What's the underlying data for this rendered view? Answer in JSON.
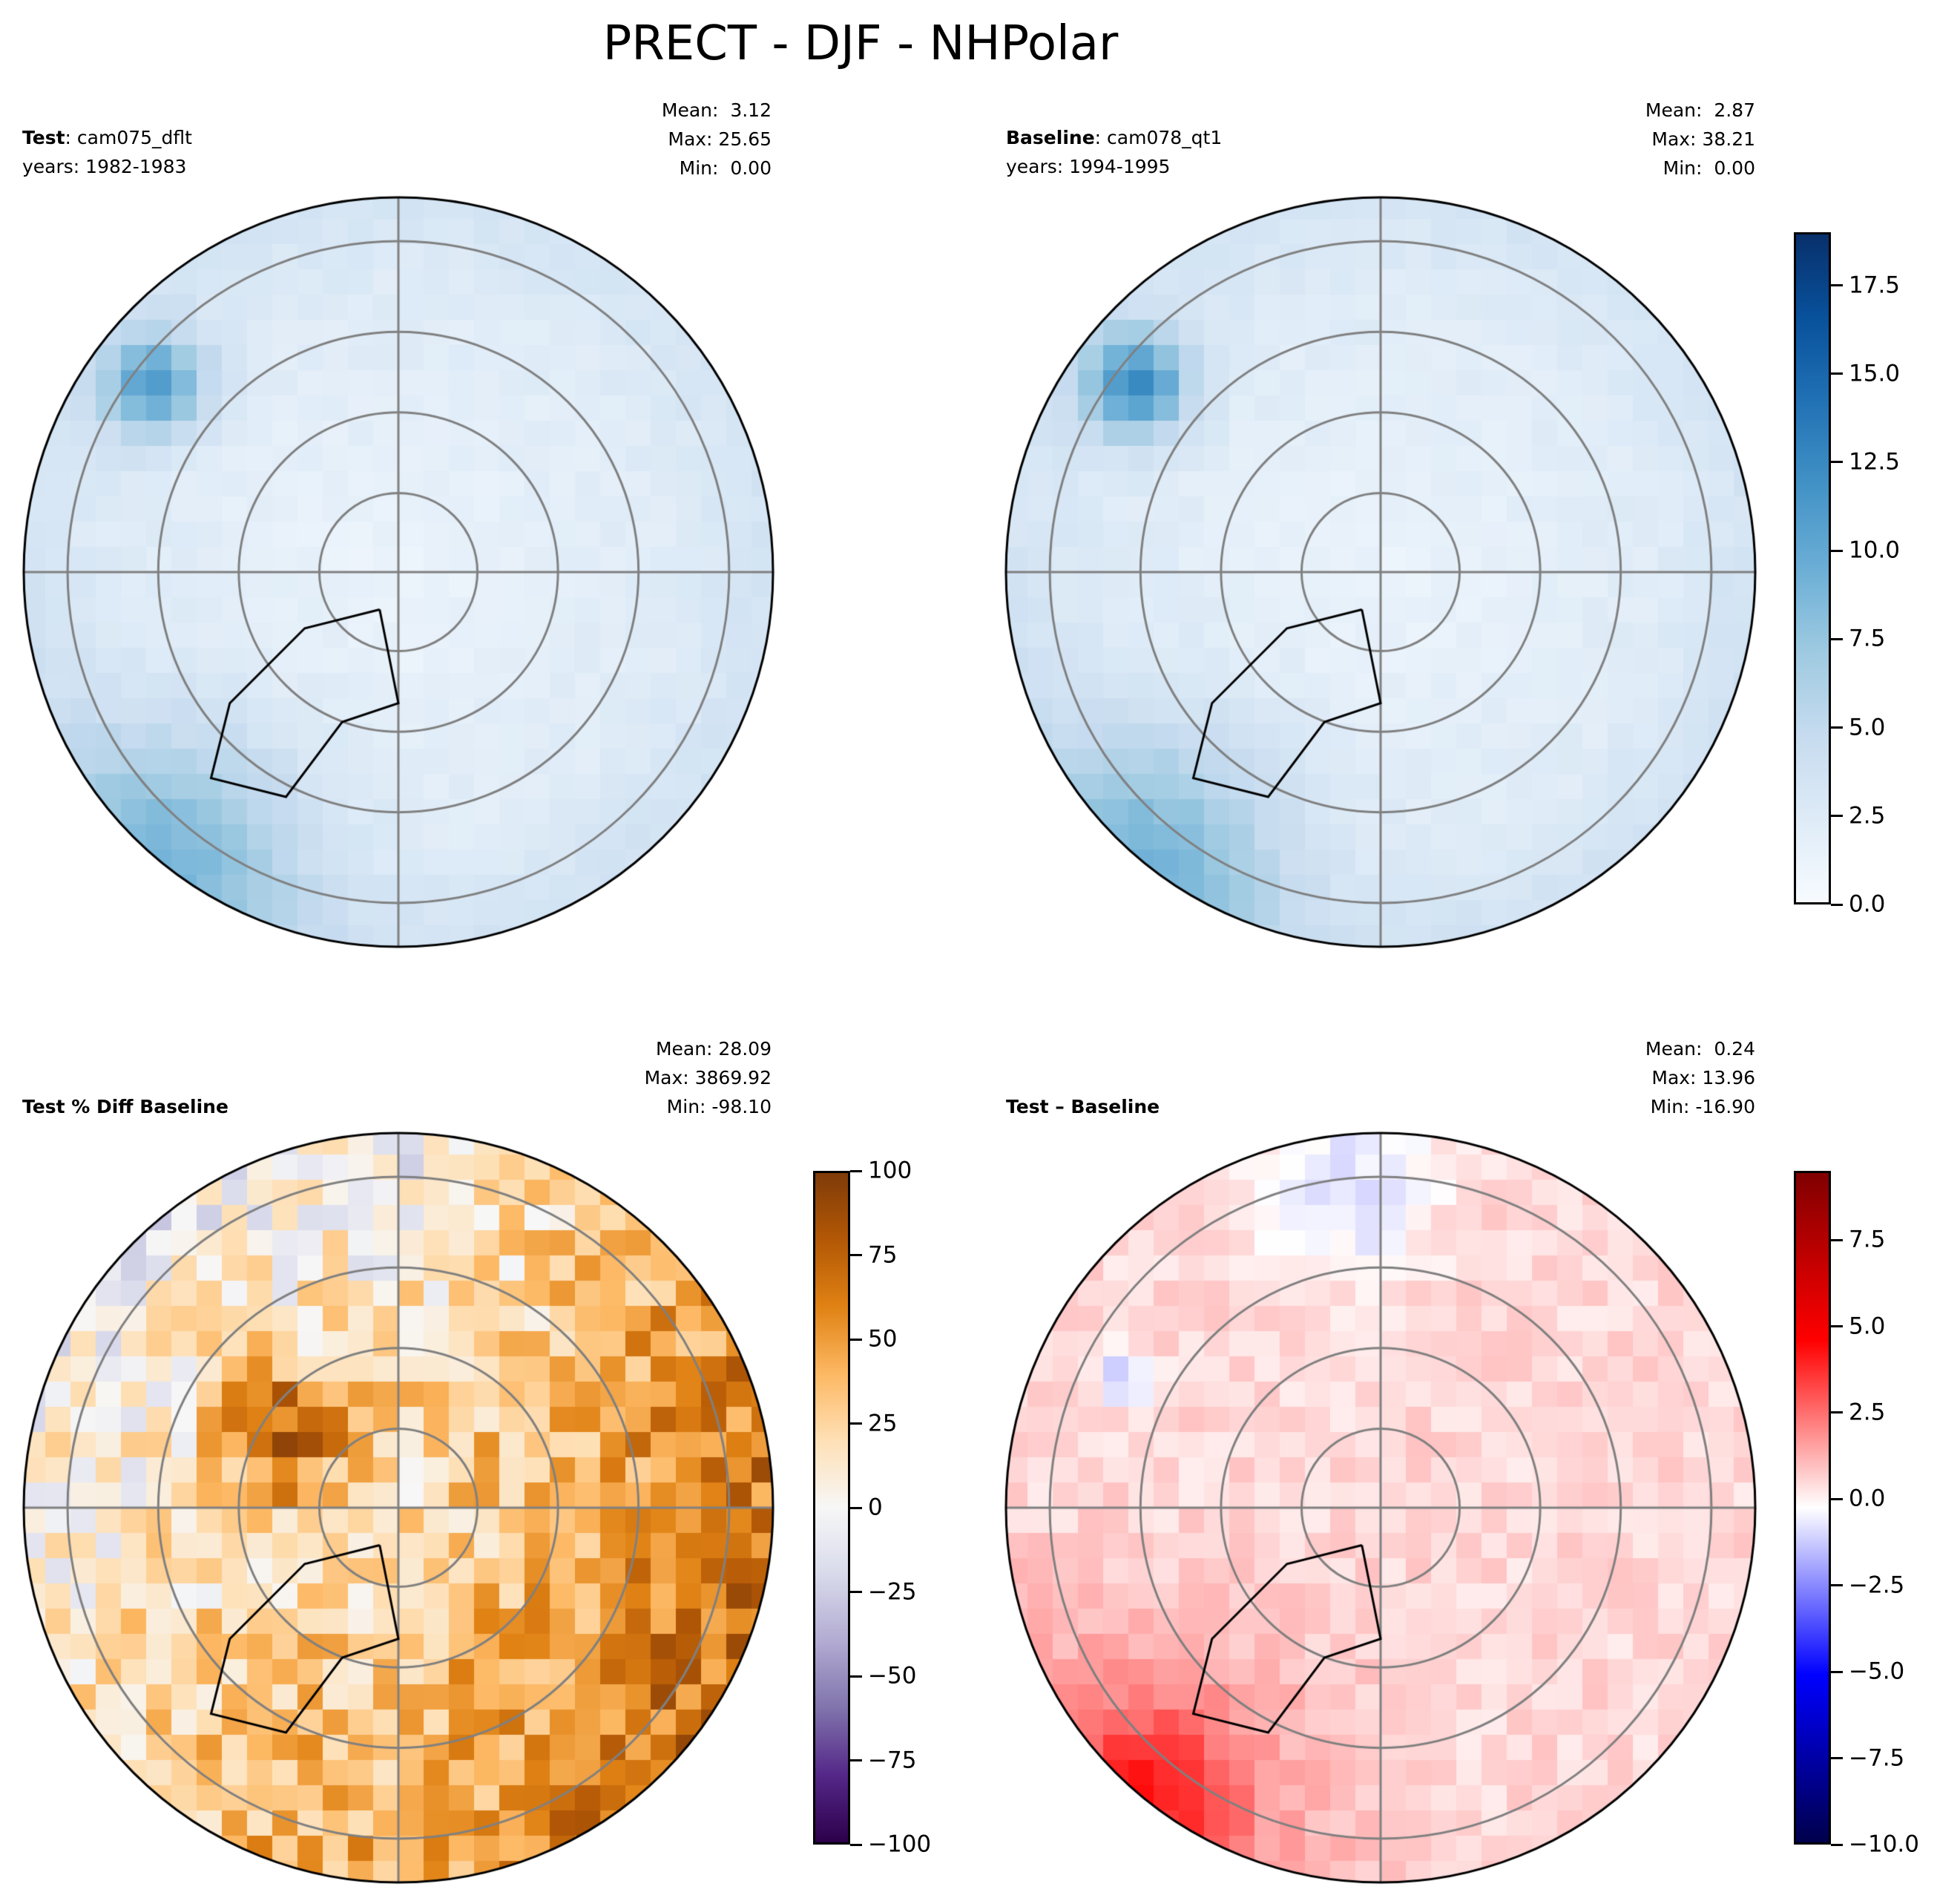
{
  "title": "PRECT - DJF - NHPolar",
  "chart_data": [
    {
      "type": "heatmap",
      "projection": "north-polar-stereographic",
      "label_bold": "Test",
      "label_rest": ": cam075_dflt",
      "years": "years: 1982-1983",
      "stats": [
        "Mean:  3.12",
        "Max: 25.65",
        "Min:  0.00"
      ],
      "colormap": "Blues",
      "colorbar": null,
      "range": [
        0,
        19
      ]
    },
    {
      "type": "heatmap",
      "projection": "north-polar-stereographic",
      "label_bold": "Baseline",
      "label_rest": ": cam078_qt1",
      "years": "years: 1994-1995",
      "stats": [
        "Mean:  2.87",
        "Max: 38.21",
        "Min:  0.00"
      ],
      "colormap": "Blues",
      "range": [
        0,
        19
      ],
      "colorbar": {
        "ticks": [
          0.0,
          2.5,
          5.0,
          7.5,
          10.0,
          12.5,
          15.0,
          17.5
        ],
        "labels": [
          "0.0",
          "2.5",
          "5.0",
          "7.5",
          "10.0",
          "12.5",
          "15.0",
          "17.5"
        ]
      }
    },
    {
      "type": "heatmap",
      "projection": "north-polar-stereographic",
      "label_bold": "Test % Diff Baseline",
      "label_rest": "",
      "years": "",
      "stats": [
        "Mean: 28.09",
        "Max: 3869.92",
        "Min: -98.10"
      ],
      "colormap": "PuOr_r",
      "range": [
        -100,
        100
      ],
      "colorbar": {
        "ticks": [
          -100,
          -75,
          -50,
          -25,
          0,
          25,
          50,
          75,
          100
        ],
        "labels": [
          "−100",
          "−75",
          "−50",
          "−25",
          "0",
          "25",
          "50",
          "75",
          "100"
        ]
      }
    },
    {
      "type": "heatmap",
      "projection": "north-polar-stereographic",
      "label_bold": "Test – Baseline",
      "label_rest": "",
      "years": "",
      "stats": [
        "Mean:  0.24",
        "Max: 13.96",
        "Min: -16.90"
      ],
      "colormap": "seismic",
      "range": [
        -10,
        9.5
      ],
      "colorbar": {
        "ticks": [
          -10.0,
          -7.5,
          -5.0,
          -2.5,
          0.0,
          2.5,
          5.0,
          7.5
        ],
        "labels": [
          "−10.0",
          "−7.5",
          "−5.0",
          "−2.5",
          "0.0",
          "2.5",
          "5.0",
          "7.5"
        ]
      }
    }
  ]
}
